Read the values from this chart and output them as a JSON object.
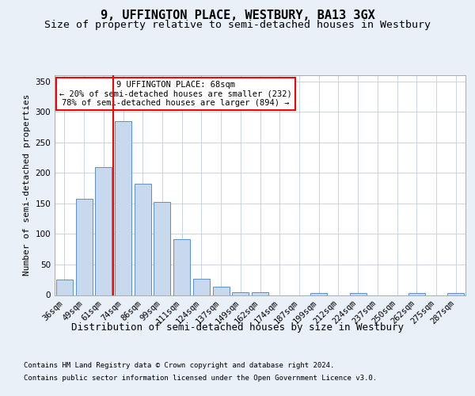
{
  "title1": "9, UFFINGTON PLACE, WESTBURY, BA13 3GX",
  "title2": "Size of property relative to semi-detached houses in Westbury",
  "xlabel": "Distribution of semi-detached houses by size in Westbury",
  "ylabel": "Number of semi-detached properties",
  "footnote1": "Contains HM Land Registry data © Crown copyright and database right 2024.",
  "footnote2": "Contains public sector information licensed under the Open Government Licence v3.0.",
  "categories": [
    "36sqm",
    "49sqm",
    "61sqm",
    "74sqm",
    "86sqm",
    "99sqm",
    "111sqm",
    "124sqm",
    "137sqm",
    "149sqm",
    "162sqm",
    "174sqm",
    "187sqm",
    "199sqm",
    "212sqm",
    "224sqm",
    "237sqm",
    "250sqm",
    "262sqm",
    "275sqm",
    "287sqm"
  ],
  "values": [
    25,
    157,
    210,
    285,
    182,
    152,
    91,
    26,
    13,
    5,
    5,
    0,
    0,
    3,
    0,
    3,
    0,
    0,
    3,
    0,
    3
  ],
  "bar_color": "#c9d9ed",
  "bar_edge_color": "#5b8fc9",
  "vline_color": "red",
  "annotation_text": "9 UFFINGTON PLACE: 68sqm\n← 20% of semi-detached houses are smaller (232)\n78% of semi-detached houses are larger (894) →",
  "annotation_box_color": "white",
  "annotation_box_edgecolor": "red",
  "ylim": [
    0,
    360
  ],
  "yticks": [
    0,
    50,
    100,
    150,
    200,
    250,
    300,
    350
  ],
  "background_color": "#eaf0f8",
  "plot_background": "white",
  "grid_color": "#c8d4e4",
  "title1_fontsize": 11,
  "title2_fontsize": 9.5,
  "xlabel_fontsize": 9,
  "ylabel_fontsize": 8,
  "tick_fontsize": 7.5,
  "footnote_fontsize": 6.5
}
